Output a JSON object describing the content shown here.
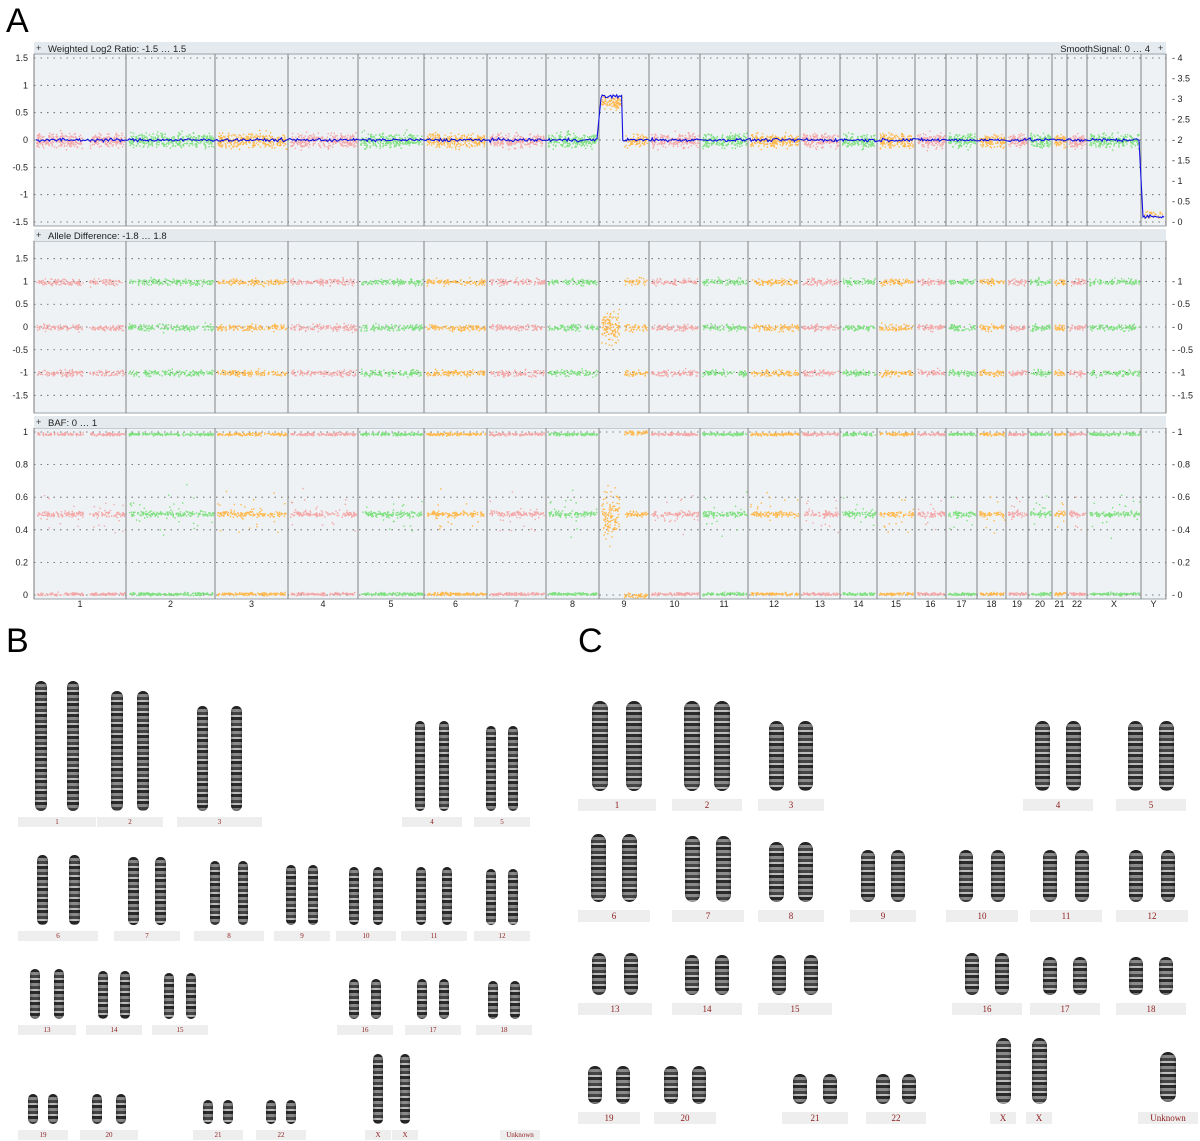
{
  "panels": {
    "a": "A",
    "b": "B",
    "c": "C"
  },
  "plot_tracks": {
    "log2_title": "Weighted Log2 Ratio: -1.5 … 1.5",
    "smooth_title": "SmoothSignal: 0 … 4",
    "allele_title": "Allele Difference: -1.8 … 1.8",
    "baf_title": "BAF: 0 … 1",
    "collapse_icon": "plus-icon"
  },
  "colors": {
    "pink": "#f4a7a7",
    "green": "#7fe07f",
    "orange": "#ffb84d",
    "smooth_line": "#1010e0",
    "plot_bg": "#eef2f5",
    "label_red": "#8b1a1a"
  },
  "chart_data": [
    {
      "type": "scatter",
      "title": "Weighted Log2 Ratio: -1.5 … 1.5",
      "ylabel": "",
      "ylim": [
        -1.5,
        1.5
      ],
      "yticks": [
        "1.5",
        "1",
        "0.5",
        "0",
        "-0.5",
        "-1",
        "-1.5"
      ],
      "y2label": "SmoothSignal: 0 … 4",
      "y2lim": [
        0,
        4
      ],
      "y2ticks": [
        "4",
        "3.5",
        "3",
        "2.5",
        "2",
        "1.5",
        "1",
        "0.5",
        "0"
      ],
      "categories": [
        "1",
        "2",
        "3",
        "4",
        "5",
        "6",
        "7",
        "8",
        "9",
        "10",
        "11",
        "12",
        "13",
        "14",
        "15",
        "16",
        "17",
        "18",
        "19",
        "20",
        "21",
        "22",
        "X",
        "Y"
      ],
      "log2_level": [
        0,
        0,
        0,
        0,
        0,
        0,
        0,
        0,
        0,
        0,
        0,
        0,
        0,
        0,
        0,
        0,
        0,
        0,
        0,
        0,
        0,
        0,
        0,
        -1.4
      ],
      "smooth_signal": [
        2,
        2,
        2,
        2,
        2,
        2,
        2,
        2,
        2,
        2,
        2,
        2,
        2,
        2,
        2,
        2,
        2,
        2,
        2,
        2,
        2,
        2,
        2,
        0
      ],
      "gain_region": {
        "chromosome": "9",
        "part": "p-arm",
        "log2": 0.8,
        "smooth_signal": 3
      },
      "grid": true
    },
    {
      "type": "scatter",
      "title": "Allele Difference: -1.8 … 1.8",
      "ylim": [
        -1.8,
        1.8
      ],
      "yticks": [
        "1.5",
        "1",
        "0.5",
        "0",
        "-0.5",
        "-1",
        "-1.5"
      ],
      "y2ticks": [
        "1",
        "0.5",
        "0",
        "-0.5",
        "-1",
        "-1.5"
      ],
      "bands": [
        -1,
        0,
        1
      ],
      "categories": [
        "1",
        "2",
        "3",
        "4",
        "5",
        "6",
        "7",
        "8",
        "9",
        "10",
        "11",
        "12",
        "13",
        "14",
        "15",
        "16",
        "17",
        "18",
        "19",
        "20",
        "21",
        "22",
        "X",
        "Y"
      ],
      "grid": true
    },
    {
      "type": "scatter",
      "title": "BAF: 0 … 1",
      "ylim": [
        0,
        1
      ],
      "yticks": [
        "1",
        "0.8",
        "0.6",
        "0.4",
        "0.2",
        "0"
      ],
      "y2ticks": [
        "1",
        "0.8",
        "0.6",
        "0.4",
        "0.2",
        "0"
      ],
      "bands": [
        0,
        0.5,
        1
      ],
      "categories": [
        "1",
        "2",
        "3",
        "4",
        "5",
        "6",
        "7",
        "8",
        "9",
        "10",
        "11",
        "12",
        "13",
        "14",
        "15",
        "16",
        "17",
        "18",
        "19",
        "20",
        "21",
        "22",
        "X",
        "Y"
      ],
      "grid": true
    }
  ],
  "karyotype_b": {
    "labels": [
      "1",
      "2",
      "3",
      "4",
      "5",
      "6",
      "7",
      "8",
      "9",
      "10",
      "11",
      "12",
      "13",
      "14",
      "15",
      "16",
      "17",
      "18",
      "19",
      "20",
      "21",
      "22",
      "X",
      "X",
      "Unknown"
    ]
  },
  "karyotype_c": {
    "labels": [
      "1",
      "2",
      "3",
      "4",
      "5",
      "6",
      "7",
      "8",
      "9",
      "10",
      "11",
      "12",
      "13",
      "14",
      "15",
      "16",
      "17",
      "18",
      "19",
      "20",
      "21",
      "22",
      "X",
      "X",
      "Unknown"
    ]
  }
}
